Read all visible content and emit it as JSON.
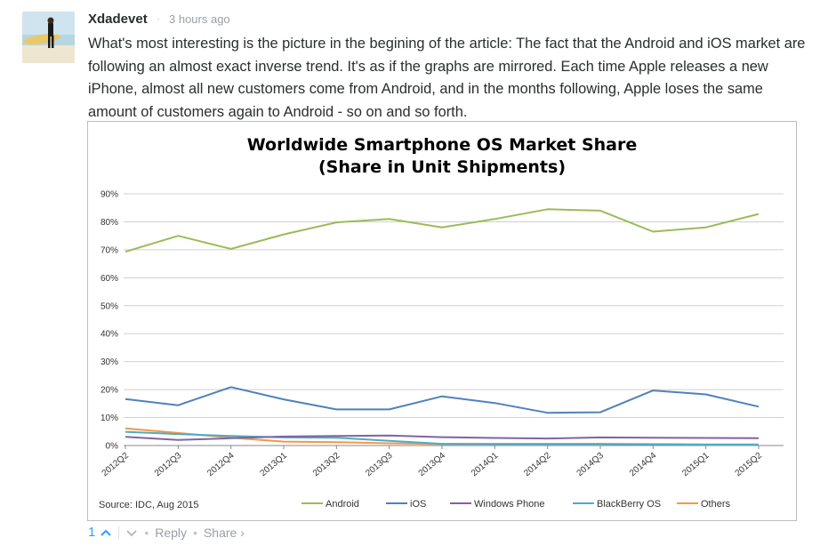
{
  "comment": {
    "author": "Xdadevet",
    "separator": "·",
    "time": "3 hours ago",
    "text": "What's most interesting is the picture in the begining of the article: The fact that the Android and iOS market are following an almost exact inverse trend. It's as if the graphs are mirrored. Each time Apple releases a new iPhone, almost all new customers come from Android, and in the months following, Apple loses the same amount of customers again to Android - so on and so forth."
  },
  "footer": {
    "votes": "1",
    "reply": "Reply",
    "share": "Share ›",
    "dot": "•"
  },
  "chart_data": {
    "type": "line",
    "title_line1": "Worldwide Smartphone OS Market Share",
    "title_line2": "(Share in Unit Shipments)",
    "source": "Source: IDC, Aug 2015",
    "ylim": [
      0,
      90
    ],
    "yticks": [
      "0%",
      "10%",
      "20%",
      "30%",
      "40%",
      "50%",
      "60%",
      "70%",
      "80%",
      "90%"
    ],
    "grid": true,
    "legend_position": "bottom",
    "x": [
      "2012Q2",
      "2012Q3",
      "2012Q4",
      "2013Q1",
      "2013Q2",
      "2013Q3",
      "2013Q4",
      "2014Q1",
      "2014Q2",
      "2014Q3",
      "2014Q4",
      "2015Q1",
      "2015Q2"
    ],
    "series": [
      {
        "name": "Android",
        "color": "#9bbb59",
        "values": [
          69.3,
          75.0,
          70.3,
          75.5,
          79.8,
          81.0,
          78.0,
          81.0,
          84.5,
          84.0,
          76.5,
          78.0,
          82.8
        ]
      },
      {
        "name": "iOS",
        "color": "#4f81bd",
        "values": [
          16.6,
          14.4,
          20.9,
          16.5,
          12.9,
          12.9,
          17.6,
          15.2,
          11.7,
          11.9,
          19.7,
          18.3,
          13.9
        ]
      },
      {
        "name": "Windows Phone",
        "color": "#8064a2",
        "values": [
          3.1,
          2.0,
          2.6,
          3.2,
          3.4,
          3.6,
          3.0,
          2.7,
          2.5,
          2.9,
          2.8,
          2.7,
          2.6
        ]
      },
      {
        "name": "BlackBerry OS",
        "color": "#4bacc6",
        "values": [
          4.9,
          4.1,
          3.4,
          2.9,
          2.8,
          1.7,
          0.6,
          0.5,
          0.5,
          0.5,
          0.4,
          0.3,
          0.3
        ]
      },
      {
        "name": "Others",
        "color": "#f79646",
        "values": [
          6.1,
          4.5,
          2.8,
          1.4,
          1.2,
          0.8,
          0.5,
          0.6,
          0.6,
          0.6,
          0.5,
          0.4,
          0.4
        ]
      }
    ]
  }
}
